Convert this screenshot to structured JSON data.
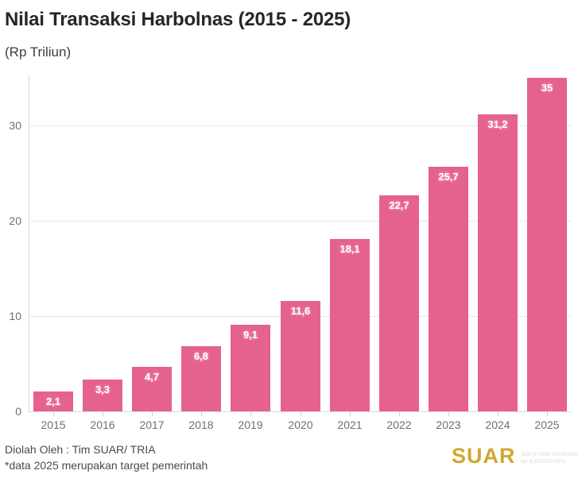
{
  "header": {
    "title": "Nilai Transaksi Harbolnas (2015 - 2025)",
    "subtitle": "(Rp Triliun)"
  },
  "chart_data": {
    "type": "bar",
    "title": "Nilai Transaksi Harbolnas (2015 - 2025)",
    "subtitle": "(Rp Triliun)",
    "xlabel": "",
    "ylabel": "Rp Triliun",
    "categories": [
      "2015",
      "2016",
      "2017",
      "2018",
      "2019",
      "2020",
      "2021",
      "2022",
      "2023",
      "2024",
      "2025"
    ],
    "values": [
      2.1,
      3.3,
      4.7,
      6.8,
      9.1,
      11.6,
      18.1,
      22.7,
      25.7,
      31.2,
      35
    ],
    "value_labels": [
      "2,1",
      "3,3",
      "4,7",
      "6,8",
      "9,1",
      "11,6",
      "18,1",
      "22,7",
      "25,7",
      "31,2",
      "35"
    ],
    "y_ticks": [
      0,
      10,
      20,
      30
    ],
    "ylim": [
      0,
      35.4
    ],
    "grid": "horizontal",
    "legend": "none",
    "bar_color": "#e5628c",
    "value_label_color": "#ffffff"
  },
  "footer": {
    "credit_line1": "Diolah Oleh : Tim SUAR/ TRIA",
    "credit_line2": "*data 2025 merupakan target pemerintah",
    "logo_text": "SUAR",
    "logo_tagline_line1": "SOLUTION JOURNALISM",
    "logo_tagline_line2": "for EXECUTIVES"
  },
  "colors": {
    "bar": "#e5628c",
    "title_text": "#262626",
    "axis_text": "#6f6f6f",
    "gridline": "#e7e7e7",
    "axis_line": "#d9d9d9",
    "footer_text": "#4a4a4a",
    "logo_gold": "#d0a82f",
    "logo_tagline": "#d8d4ca",
    "background": "#ffffff"
  }
}
